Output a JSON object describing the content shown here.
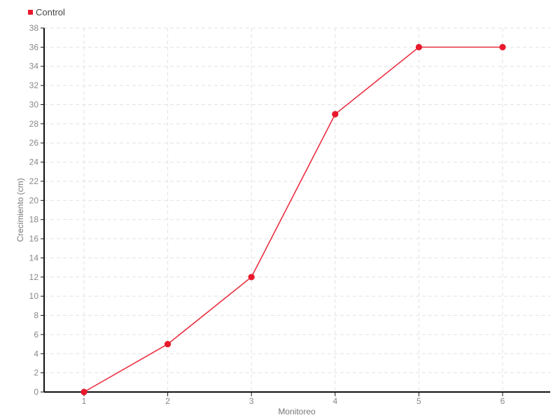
{
  "chart_data": {
    "type": "line",
    "x": [
      1,
      2,
      3,
      4,
      5,
      6
    ],
    "xticks": [
      1,
      2,
      3,
      4,
      5,
      6
    ],
    "xlabel": "Monitoreo",
    "ylabel": "Crecimiento (cm)",
    "ylim": [
      0,
      38
    ],
    "ytick_step": 2,
    "grid": true,
    "grid_style": "dashed",
    "legend_position": "top-left",
    "series": [
      {
        "name": "Control",
        "color": "#e8192c",
        "marker": "circle",
        "values": [
          0,
          5,
          12,
          29,
          36,
          36
        ]
      }
    ],
    "colors": {
      "background": "#ffffff",
      "grid": "#e2e2e2",
      "axis": "#111111",
      "tick_text": "#888888",
      "axis_label_text": "#777777",
      "legend_text": "#444444"
    }
  }
}
